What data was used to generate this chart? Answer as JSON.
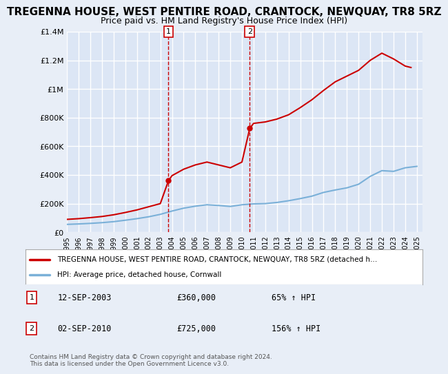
{
  "title": "TREGENNA HOUSE, WEST PENTIRE ROAD, CRANTOCK, NEWQUAY, TR8 5RZ",
  "subtitle": "Price paid vs. HM Land Registry's House Price Index (HPI)",
  "title_fontsize": 11,
  "subtitle_fontsize": 9,
  "ylim": [
    0,
    1400000
  ],
  "xlim_start": 1995.0,
  "xlim_end": 2025.5,
  "yticks": [
    0,
    200000,
    400000,
    600000,
    800000,
    1000000,
    1200000,
    1400000
  ],
  "ytick_labels": [
    "£0",
    "£200K",
    "£400K",
    "£600K",
    "£800K",
    "£1M",
    "£1.2M",
    "£1.4M"
  ],
  "bg_color": "#e8eef7",
  "plot_bg_color": "#dce6f5",
  "grid_color": "#ffffff",
  "red_line_color": "#cc0000",
  "blue_line_color": "#7ab0d8",
  "sale1_x": 2003.7,
  "sale1_y": 360000,
  "sale2_x": 2010.67,
  "sale2_y": 725000,
  "legend_label_red": "TREGENNA HOUSE, WEST PENTIRE ROAD, CRANTOCK, NEWQUAY, TR8 5RZ (detached h…",
  "legend_label_blue": "HPI: Average price, detached house, Cornwall",
  "table_data": [
    {
      "num": "1",
      "date": "12-SEP-2003",
      "price": "£360,000",
      "change": "65% ↑ HPI"
    },
    {
      "num": "2",
      "date": "02-SEP-2010",
      "price": "£725,000",
      "change": "156% ↑ HPI"
    }
  ],
  "copyright_text": "Contains HM Land Registry data © Crown copyright and database right 2024.\nThis data is licensed under the Open Government Licence v3.0.",
  "hpi_years": [
    1995,
    1996,
    1997,
    1998,
    1999,
    2000,
    2001,
    2002,
    2003,
    2004,
    2005,
    2006,
    2007,
    2008,
    2009,
    2010,
    2011,
    2012,
    2013,
    2014,
    2015,
    2016,
    2017,
    2018,
    2019,
    2020,
    2021,
    2022,
    2023,
    2024,
    2025
  ],
  "hpi_values": [
    55000,
    58000,
    62000,
    67000,
    74000,
    84000,
    95000,
    108000,
    125000,
    148000,
    168000,
    182000,
    192000,
    187000,
    180000,
    192000,
    198000,
    200000,
    208000,
    220000,
    235000,
    252000,
    278000,
    295000,
    310000,
    335000,
    390000,
    430000,
    425000,
    450000,
    460000
  ],
  "red_years": [
    1995,
    1996,
    1997,
    1998,
    1999,
    2000,
    2001,
    2002,
    2003,
    2003.7,
    2004,
    2005,
    2006,
    2007,
    2008,
    2009,
    2010,
    2010.67,
    2011,
    2012,
    2013,
    2014,
    2015,
    2016,
    2017,
    2018,
    2019,
    2020,
    2021,
    2022,
    2023,
    2024,
    2024.5
  ],
  "red_values": [
    90000,
    95000,
    102000,
    110000,
    122000,
    138000,
    156000,
    178000,
    200000,
    360000,
    395000,
    440000,
    470000,
    490000,
    470000,
    450000,
    490000,
    725000,
    760000,
    770000,
    790000,
    820000,
    870000,
    925000,
    990000,
    1050000,
    1090000,
    1130000,
    1200000,
    1250000,
    1210000,
    1160000,
    1150000
  ]
}
